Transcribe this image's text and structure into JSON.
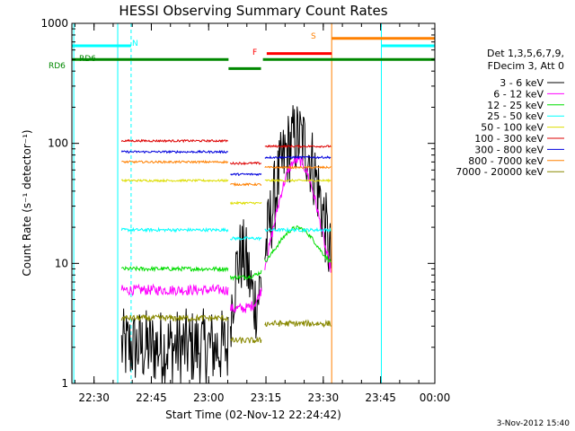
{
  "chart_data": {
    "type": "line",
    "title": "HESSI Observing Summary Count Rates",
    "xlabel": "Start Time (02-Nov-12 22:24:42)",
    "ylabel": "Count Rate (s⁻¹ detector⁻¹)",
    "yscale": "log",
    "ylim": [
      1,
      1000
    ],
    "y_ticks": [
      {
        "v": 1,
        "label": "1"
      },
      {
        "v": 10,
        "label": "10"
      },
      {
        "v": 100,
        "label": "100"
      },
      {
        "v": 1000,
        "label": "1000"
      }
    ],
    "xlim_min": [
      -0.5,
      94.5
    ],
    "x_ticks": [
      {
        "t": 5.3,
        "label": "22:30"
      },
      {
        "t": 20.3,
        "label": "22:45"
      },
      {
        "t": 35.3,
        "label": "23:00"
      },
      {
        "t": 50.3,
        "label": "23:15"
      },
      {
        "t": 65.3,
        "label": "23:30"
      },
      {
        "t": 80.3,
        "label": "23:45"
      },
      {
        "t": 95.3,
        "label": "00:00"
      }
    ],
    "legend_header": [
      "Det 1,3,5,6,7,9,",
      "FDecim 3, Att 0"
    ],
    "legend_position": "right",
    "series": [
      {
        "name": "3 - 6 keV",
        "color": "#000000",
        "base": 2.0,
        "noise": 0.25
      },
      {
        "name": "6 - 12 keV",
        "color": "#ff00ff",
        "base": 6.0,
        "noise": 0.1
      },
      {
        "name": "12 - 25 keV",
        "color": "#00dd00",
        "base": 9.0,
        "noise": 0.04
      },
      {
        "name": "25 - 50 keV",
        "color": "#00ffff",
        "base": 19.0,
        "noise": 0.03
      },
      {
        "name": "50 - 100 keV",
        "color": "#dddd00",
        "base": 49.0,
        "noise": 0.02
      },
      {
        "name": "100 - 300 keV",
        "color": "#dd0000",
        "base": 105.0,
        "noise": 0.02
      },
      {
        "name": "300 - 800 keV",
        "color": "#0000dd",
        "base": 85.0,
        "noise": 0.02
      },
      {
        "name": "800 - 7000 keV",
        "color": "#ff8000",
        "base": 70.0,
        "noise": 0.02
      },
      {
        "name": "7000 - 20000 keV",
        "color": "#888800",
        "base": 3.5,
        "noise": 0.06
      }
    ],
    "data_segments_min": [
      [
        12.5,
        40.5
      ],
      [
        41.0,
        49.2
      ],
      [
        50.0,
        67.3
      ]
    ],
    "flare_peak_min": 58.5,
    "flags": [
      {
        "label": "N",
        "color": "#00ffff",
        "segments": [
          [
            -0.5,
            15.0
          ],
          [
            80.5,
            94.5
          ]
        ],
        "level": 650
      },
      {
        "label": "RD6",
        "color": "#008800",
        "segments": [
          [
            -0.5,
            40.5
          ],
          [
            49.5,
            94.5
          ]
        ],
        "level": 500,
        "alt_segments": [
          [
            40.5,
            49.0
          ]
        ],
        "alt_level": 420
      },
      {
        "label": "F",
        "color": "#ff0000",
        "segments": [
          [
            50.5,
            67.5
          ]
        ],
        "level": 560
      },
      {
        "label": "S",
        "color": "#ff8000",
        "segments": [
          [
            67.5,
            94.5
          ]
        ],
        "level": 750
      }
    ],
    "vertical_markers": [
      {
        "t": 0.0,
        "color": "#00ffff",
        "dashed": false
      },
      {
        "t": 15.0,
        "color": "#00ffff",
        "dashed": true
      },
      {
        "t": 11.5,
        "color": "#00ffff",
        "dashed": false
      },
      {
        "t": 67.5,
        "color": "#ff8000",
        "dashed": false
      },
      {
        "t": 80.5,
        "color": "#00ffff",
        "dashed": false
      },
      {
        "t": 94.5,
        "color": "#00ffff",
        "dashed": true
      }
    ],
    "flag_labels": {
      "rd6_left": "RD6",
      "rd6_top": "RD6",
      "n": "N",
      "f": "F",
      "s": "S"
    }
  },
  "footer": {
    "timestamp": "3-Nov-2012 15:40"
  }
}
